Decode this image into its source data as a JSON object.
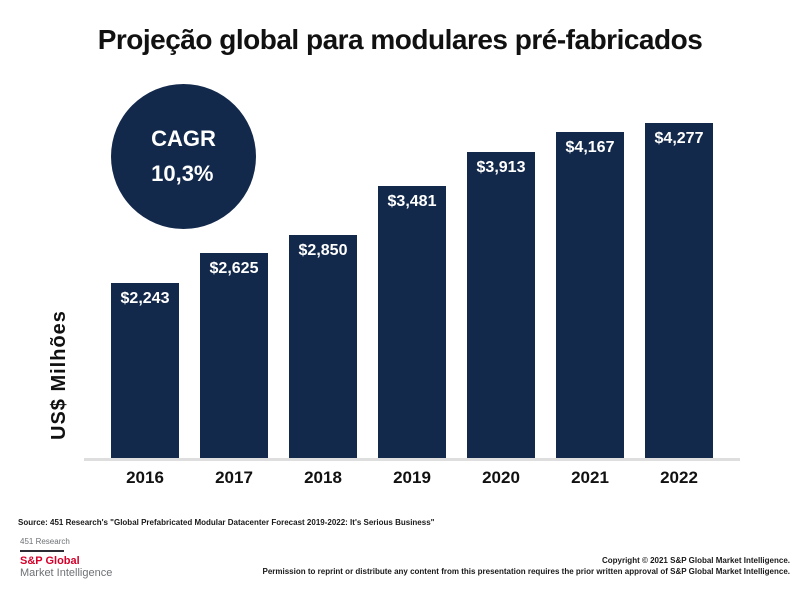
{
  "title": "Projeção global para modulares pré-fabricados",
  "cagr_badge": {
    "line1": "CAGR",
    "line2": "10,3%"
  },
  "chart_data": {
    "type": "bar",
    "categories": [
      "2016",
      "2017",
      "2018",
      "2019",
      "2020",
      "2021",
      "2022"
    ],
    "values": [
      2243,
      2625,
      2850,
      3481,
      3913,
      4167,
      4277
    ],
    "value_labels": [
      "$2,243",
      "$2,625",
      "$2,850",
      "$3,481",
      "$3,913",
      "$4,167",
      "$4,277"
    ],
    "title": "Projeção global para modulares pré-fabricados",
    "xlabel": "",
    "ylabel": "US$ Milhões",
    "ylim": [
      0,
      4277
    ],
    "grid": false,
    "legend_position": "none",
    "bar_color": "#13294C",
    "value_label_color": "#FFFFFF",
    "annotation": "CAGR 10,3%"
  },
  "footer": {
    "source": "Source: 451 Research's \"Global Prefabricated Modular Datacenter Forecast 2019-2022: It's Serious Business\"",
    "brand_top": "451 Research",
    "brand_name": "S&P Global",
    "brand_sub": "Market Intelligence",
    "copyright_line1": "Copyright © 2021 S&P Global Market Intelligence.",
    "copyright_line2": "Permission to reprint or distribute any content from this presentation requires the prior written approval of S&P Global Market Intelligence."
  },
  "colors": {
    "bar": "#13294C",
    "brand_red": "#D6002A",
    "gray_text": "#6E7175",
    "axis_line": "#DEDEDE"
  }
}
